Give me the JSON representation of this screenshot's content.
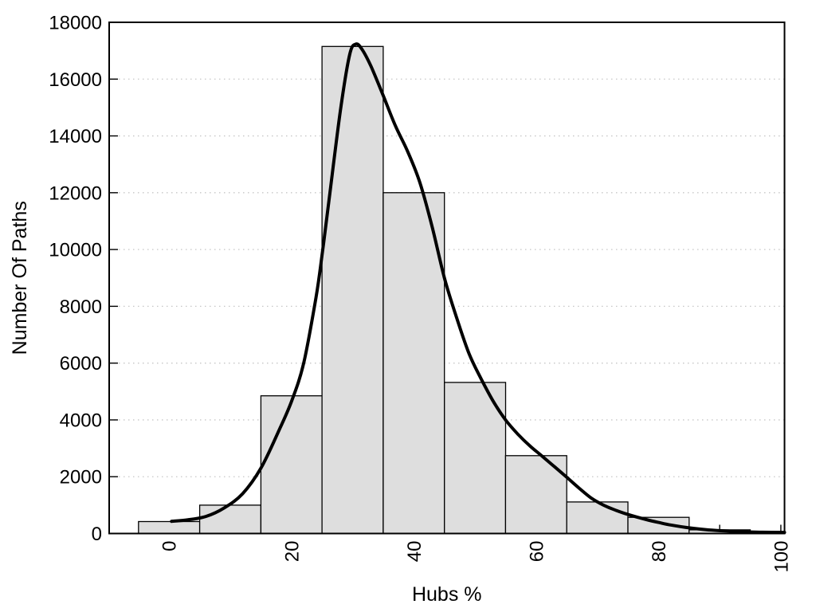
{
  "chart_data": {
    "type": "bar",
    "subtype": "histogram-with-fit-curve",
    "title": "",
    "xlabel": "Hubs %",
    "ylabel": "Number Of Paths",
    "xlim": [
      -9.8,
      100.6
    ],
    "ylim": [
      0,
      18000
    ],
    "grid": "horizontal-dotted",
    "legend": "none",
    "x_ticks": [
      0,
      20,
      40,
      60,
      80,
      100
    ],
    "x_tick_labels": [
      "0",
      "20",
      "40",
      "60",
      "80",
      "100"
    ],
    "x_minor_ticks": [
      10,
      30,
      50,
      70,
      90
    ],
    "x_tick_label_rotation": -90,
    "y_ticks": [
      0,
      2000,
      4000,
      6000,
      8000,
      10000,
      12000,
      14000,
      16000,
      18000
    ],
    "y_tick_labels": [
      "0",
      "2000",
      "4000",
      "6000",
      "8000",
      "10000",
      "12000",
      "14000",
      "16000",
      "18000"
    ],
    "bars": {
      "bin_width": 10,
      "centers": [
        0,
        10,
        20,
        30,
        40,
        50,
        60,
        70,
        80,
        90,
        100
      ],
      "counts": [
        420,
        1000,
        4850,
        17150,
        12000,
        5320,
        2740,
        1110,
        570,
        130,
        40
      ]
    },
    "fit_curve": {
      "name": "smooth-fit-curve",
      "peak": [
        30.3,
        17230
      ],
      "points": [
        [
          0.4,
          430
        ],
        [
          3,
          480
        ],
        [
          6,
          600
        ],
        [
          9,
          900
        ],
        [
          12,
          1400
        ],
        [
          15,
          2300
        ],
        [
          18,
          3650
        ],
        [
          20,
          4650
        ],
        [
          22,
          6000
        ],
        [
          24,
          8300
        ],
        [
          25,
          9800
        ],
        [
          26,
          11500
        ],
        [
          28,
          14900
        ],
        [
          29.5,
          16850
        ],
        [
          30.5,
          17230
        ],
        [
          31.5,
          17060
        ],
        [
          33,
          16450
        ],
        [
          35,
          15420
        ],
        [
          37,
          14350
        ],
        [
          39,
          13450
        ],
        [
          41,
          12350
        ],
        [
          43,
          10800
        ],
        [
          45,
          9000
        ],
        [
          47,
          7600
        ],
        [
          49,
          6350
        ],
        [
          51,
          5450
        ],
        [
          53,
          4650
        ],
        [
          55,
          4000
        ],
        [
          57,
          3500
        ],
        [
          59,
          3080
        ],
        [
          61,
          2720
        ],
        [
          63,
          2350
        ],
        [
          65,
          1980
        ],
        [
          67,
          1600
        ],
        [
          69,
          1250
        ],
        [
          71,
          1000
        ],
        [
          73,
          820
        ],
        [
          75,
          670
        ],
        [
          78,
          490
        ],
        [
          80,
          390
        ],
        [
          82,
          300
        ],
        [
          85,
          200
        ],
        [
          88,
          130
        ],
        [
          91,
          90
        ],
        [
          94,
          60
        ],
        [
          97,
          45
        ],
        [
          100.6,
          40
        ]
      ]
    },
    "colors": {
      "background": "#ffffff",
      "bar_fill": "#dedede",
      "bar_border": "#000000",
      "curve": "#000000",
      "grid": "#c6c6c6",
      "axis": "#000000",
      "text": "#000000"
    }
  }
}
